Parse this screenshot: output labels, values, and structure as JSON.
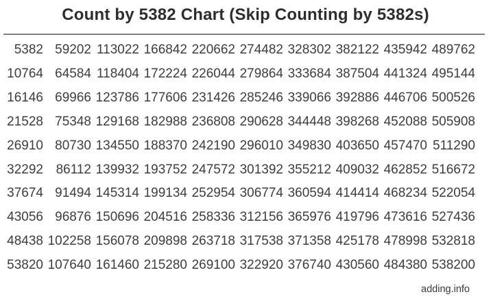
{
  "page": {
    "title": "Count by 5382 Chart (Skip Counting by 5382s)",
    "footer_label": "adding.info"
  },
  "chart_data": {
    "type": "table",
    "title": "Count by 5382 Chart (Skip Counting by 5382s)",
    "step": 5382,
    "fill_order": "column-major",
    "columns": 10,
    "rows_count": 10,
    "rows": [
      [
        5382,
        59202,
        113022,
        166842,
        220662,
        274482,
        328302,
        382122,
        435942,
        489762
      ],
      [
        10764,
        64584,
        118404,
        172224,
        226044,
        279864,
        333684,
        387504,
        441324,
        495144
      ],
      [
        16146,
        69966,
        123786,
        177606,
        231426,
        285246,
        339066,
        392886,
        446706,
        500526
      ],
      [
        21528,
        75348,
        129168,
        182988,
        236808,
        290628,
        344448,
        398268,
        452088,
        505908
      ],
      [
        26910,
        80730,
        134550,
        188370,
        242190,
        296010,
        349830,
        403650,
        457470,
        511290
      ],
      [
        32292,
        86112,
        139932,
        193752,
        247572,
        301392,
        355212,
        409032,
        462852,
        516672
      ],
      [
        37674,
        91494,
        145314,
        199134,
        252954,
        306774,
        360594,
        414414,
        468234,
        522054
      ],
      [
        43056,
        96876,
        150696,
        204516,
        258336,
        312156,
        365976,
        419796,
        473616,
        527436
      ],
      [
        48438,
        102258,
        156078,
        209898,
        263718,
        317538,
        371358,
        425178,
        478998,
        532818
      ],
      [
        53820,
        107640,
        161460,
        215280,
        269100,
        322920,
        376740,
        430560,
        484380,
        538200
      ]
    ]
  },
  "colors": {
    "background": "#ffffff",
    "title_text": "#2d2d2d",
    "number_text": "#3d3d3d",
    "divider": "#7f7f7f",
    "footer_text": "#3a3a3a"
  }
}
